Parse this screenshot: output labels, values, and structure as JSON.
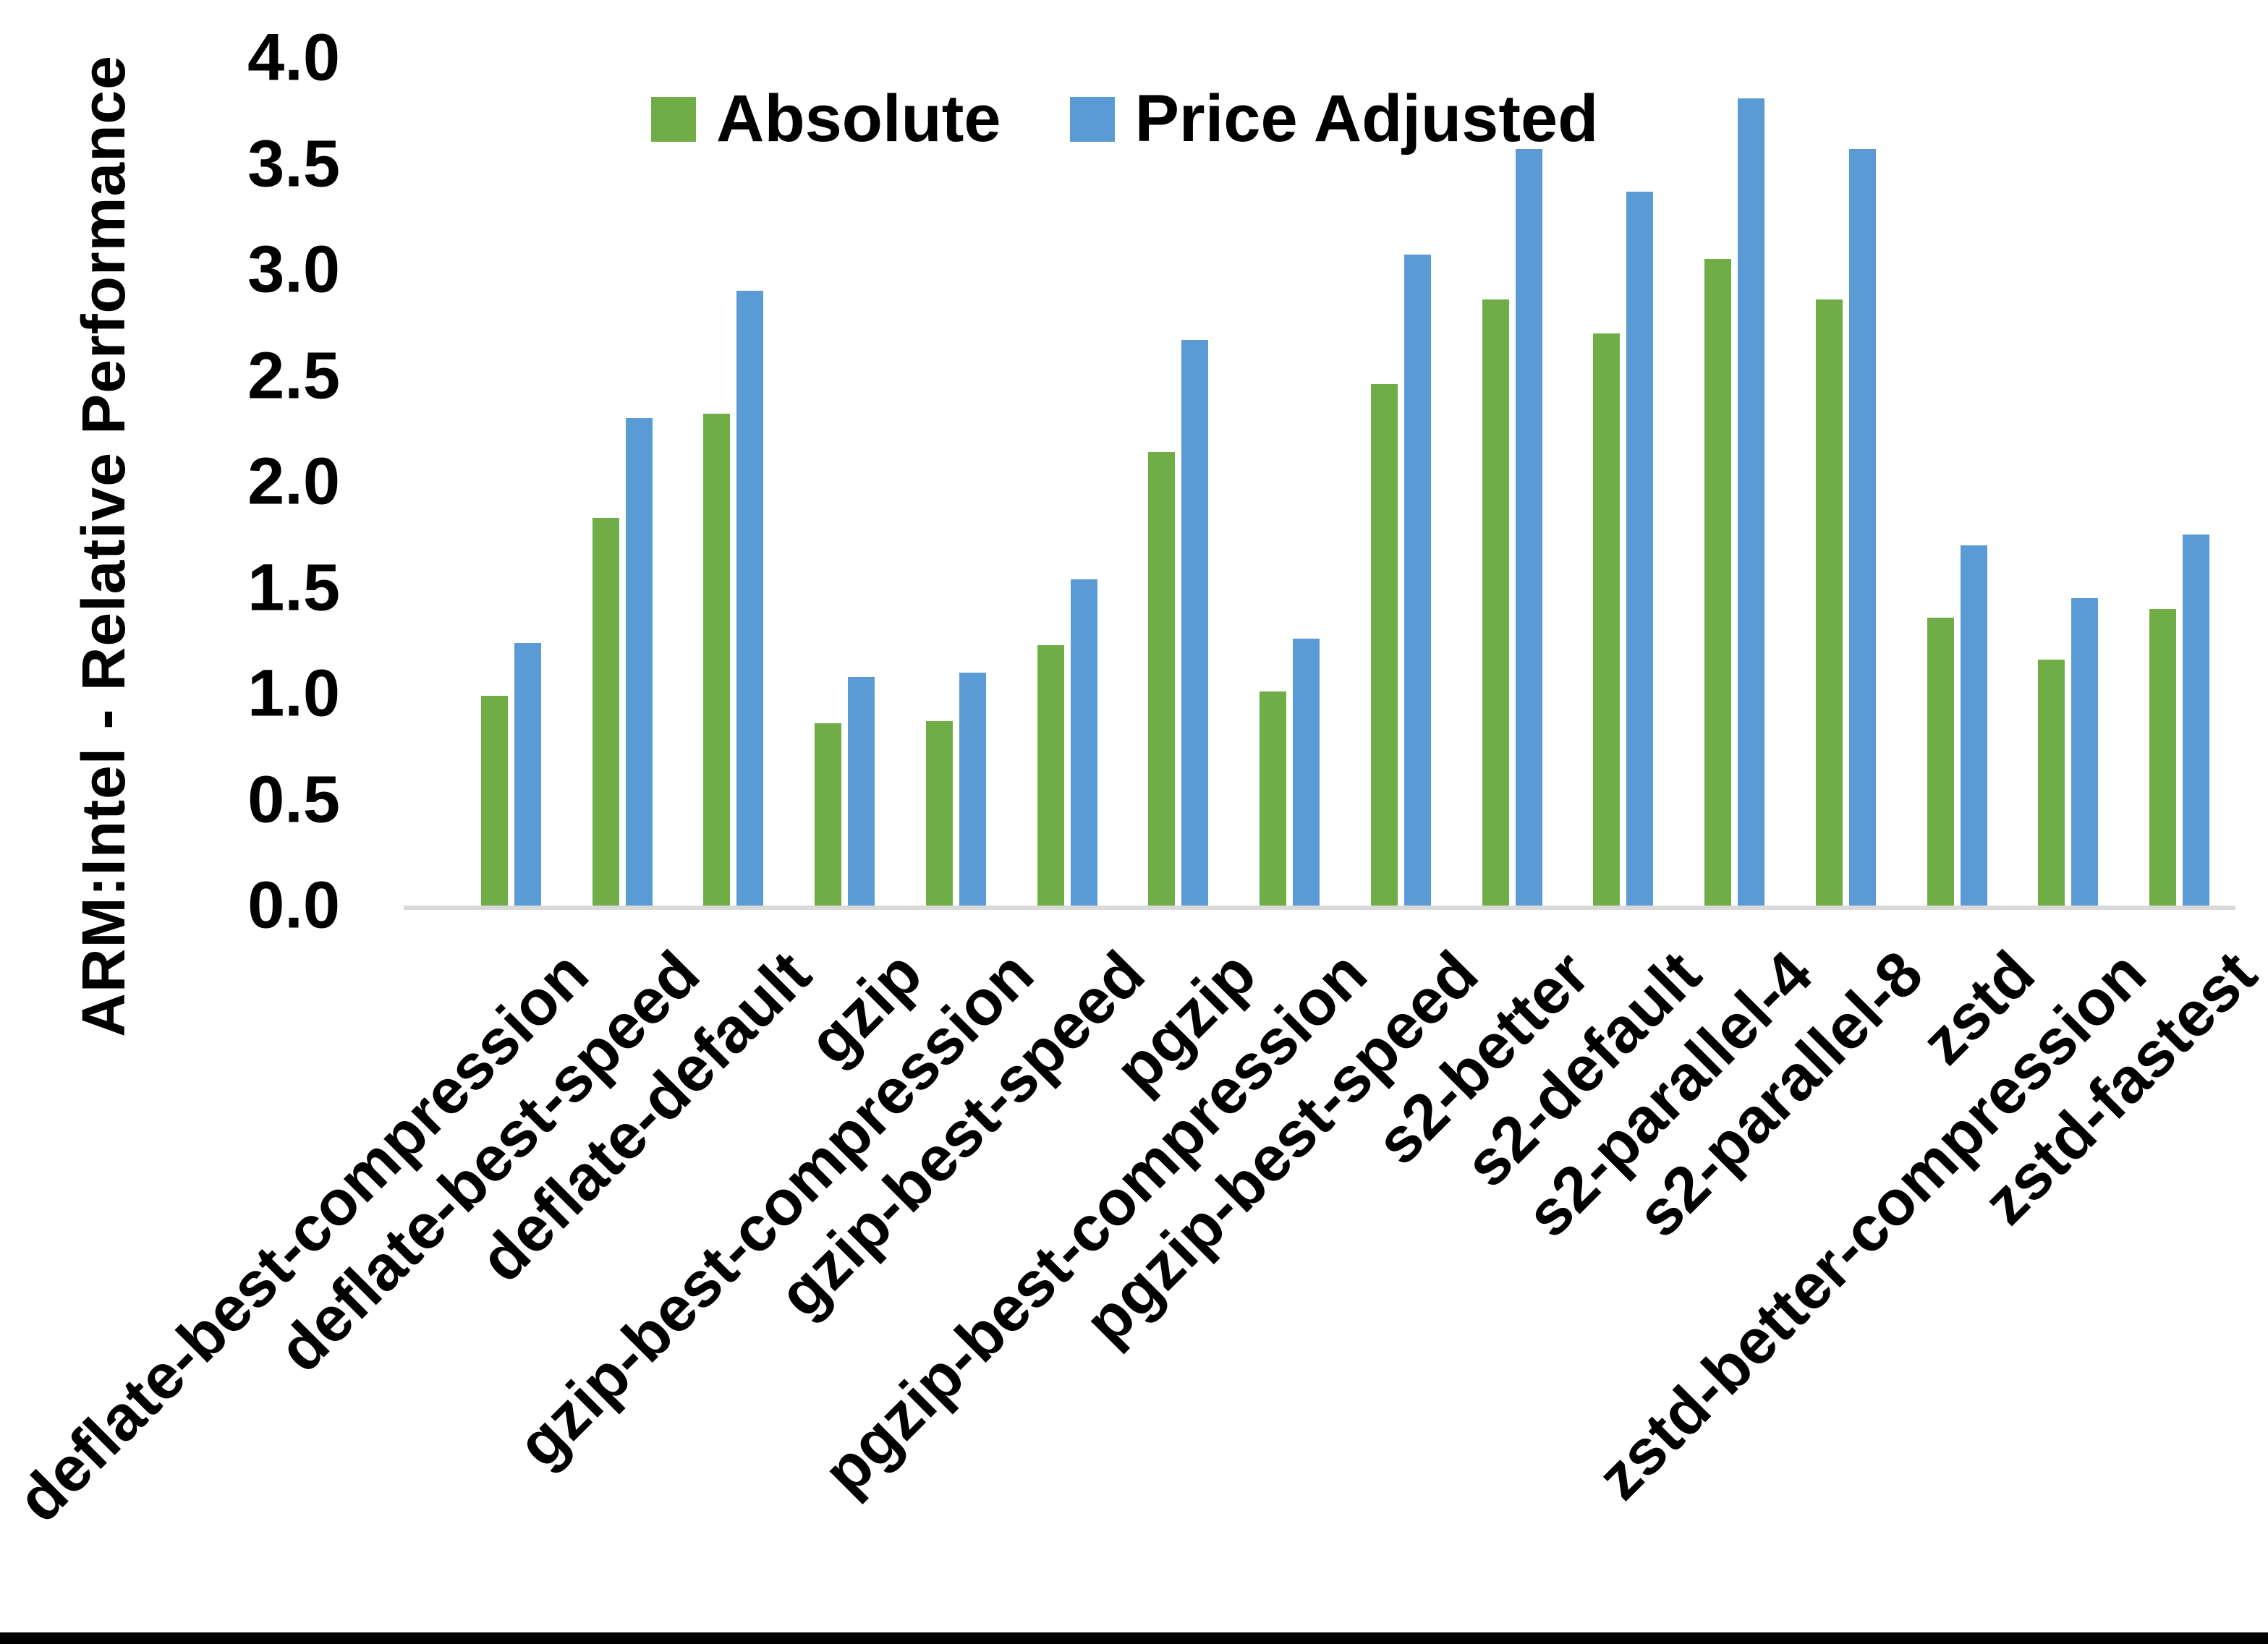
{
  "figure": {
    "background": "#ffffff",
    "bottom_edge_bar_color": "#000000"
  },
  "chart_data": {
    "type": "bar",
    "title": "",
    "xlabel": "",
    "ylabel": "ARM:Intel - Relative Performance",
    "ylim": [
      0.0,
      4.0
    ],
    "ytick_step": 0.5,
    "ytick_labels": [
      "0.0",
      "0.5",
      "1.0",
      "1.5",
      "2.0",
      "2.5",
      "3.0",
      "3.5",
      "4.0"
    ],
    "grid": false,
    "legend_position": "top-center",
    "axis_line_color": "#D9D9D9",
    "categories": [
      "deflate-best-compression",
      "deflate-best-speed",
      "deflate-default",
      "gzip",
      "gzip-best-compression",
      "gzip-best-speed",
      "pgzip",
      "pgzip-best-compression",
      "pgzip-best-speed",
      "s2-better",
      "s2-default",
      "s2-parallel-4",
      "s2-parallel-8",
      "zstd",
      "zstd-better-compression",
      "zstd-fastest"
    ],
    "series": [
      {
        "name": "Absolute",
        "color": "#70AD47",
        "values": [
          0.99,
          1.83,
          2.32,
          0.86,
          0.87,
          1.23,
          2.14,
          1.01,
          2.46,
          2.86,
          2.7,
          3.05,
          2.86,
          1.36,
          1.16,
          1.4
        ]
      },
      {
        "name": "Price Adjusted",
        "color": "#5B9BD5",
        "values": [
          1.24,
          2.3,
          2.9,
          1.08,
          1.1,
          1.54,
          2.67,
          1.26,
          3.07,
          3.57,
          3.37,
          3.81,
          3.57,
          1.7,
          1.45,
          1.75
        ]
      }
    ]
  }
}
